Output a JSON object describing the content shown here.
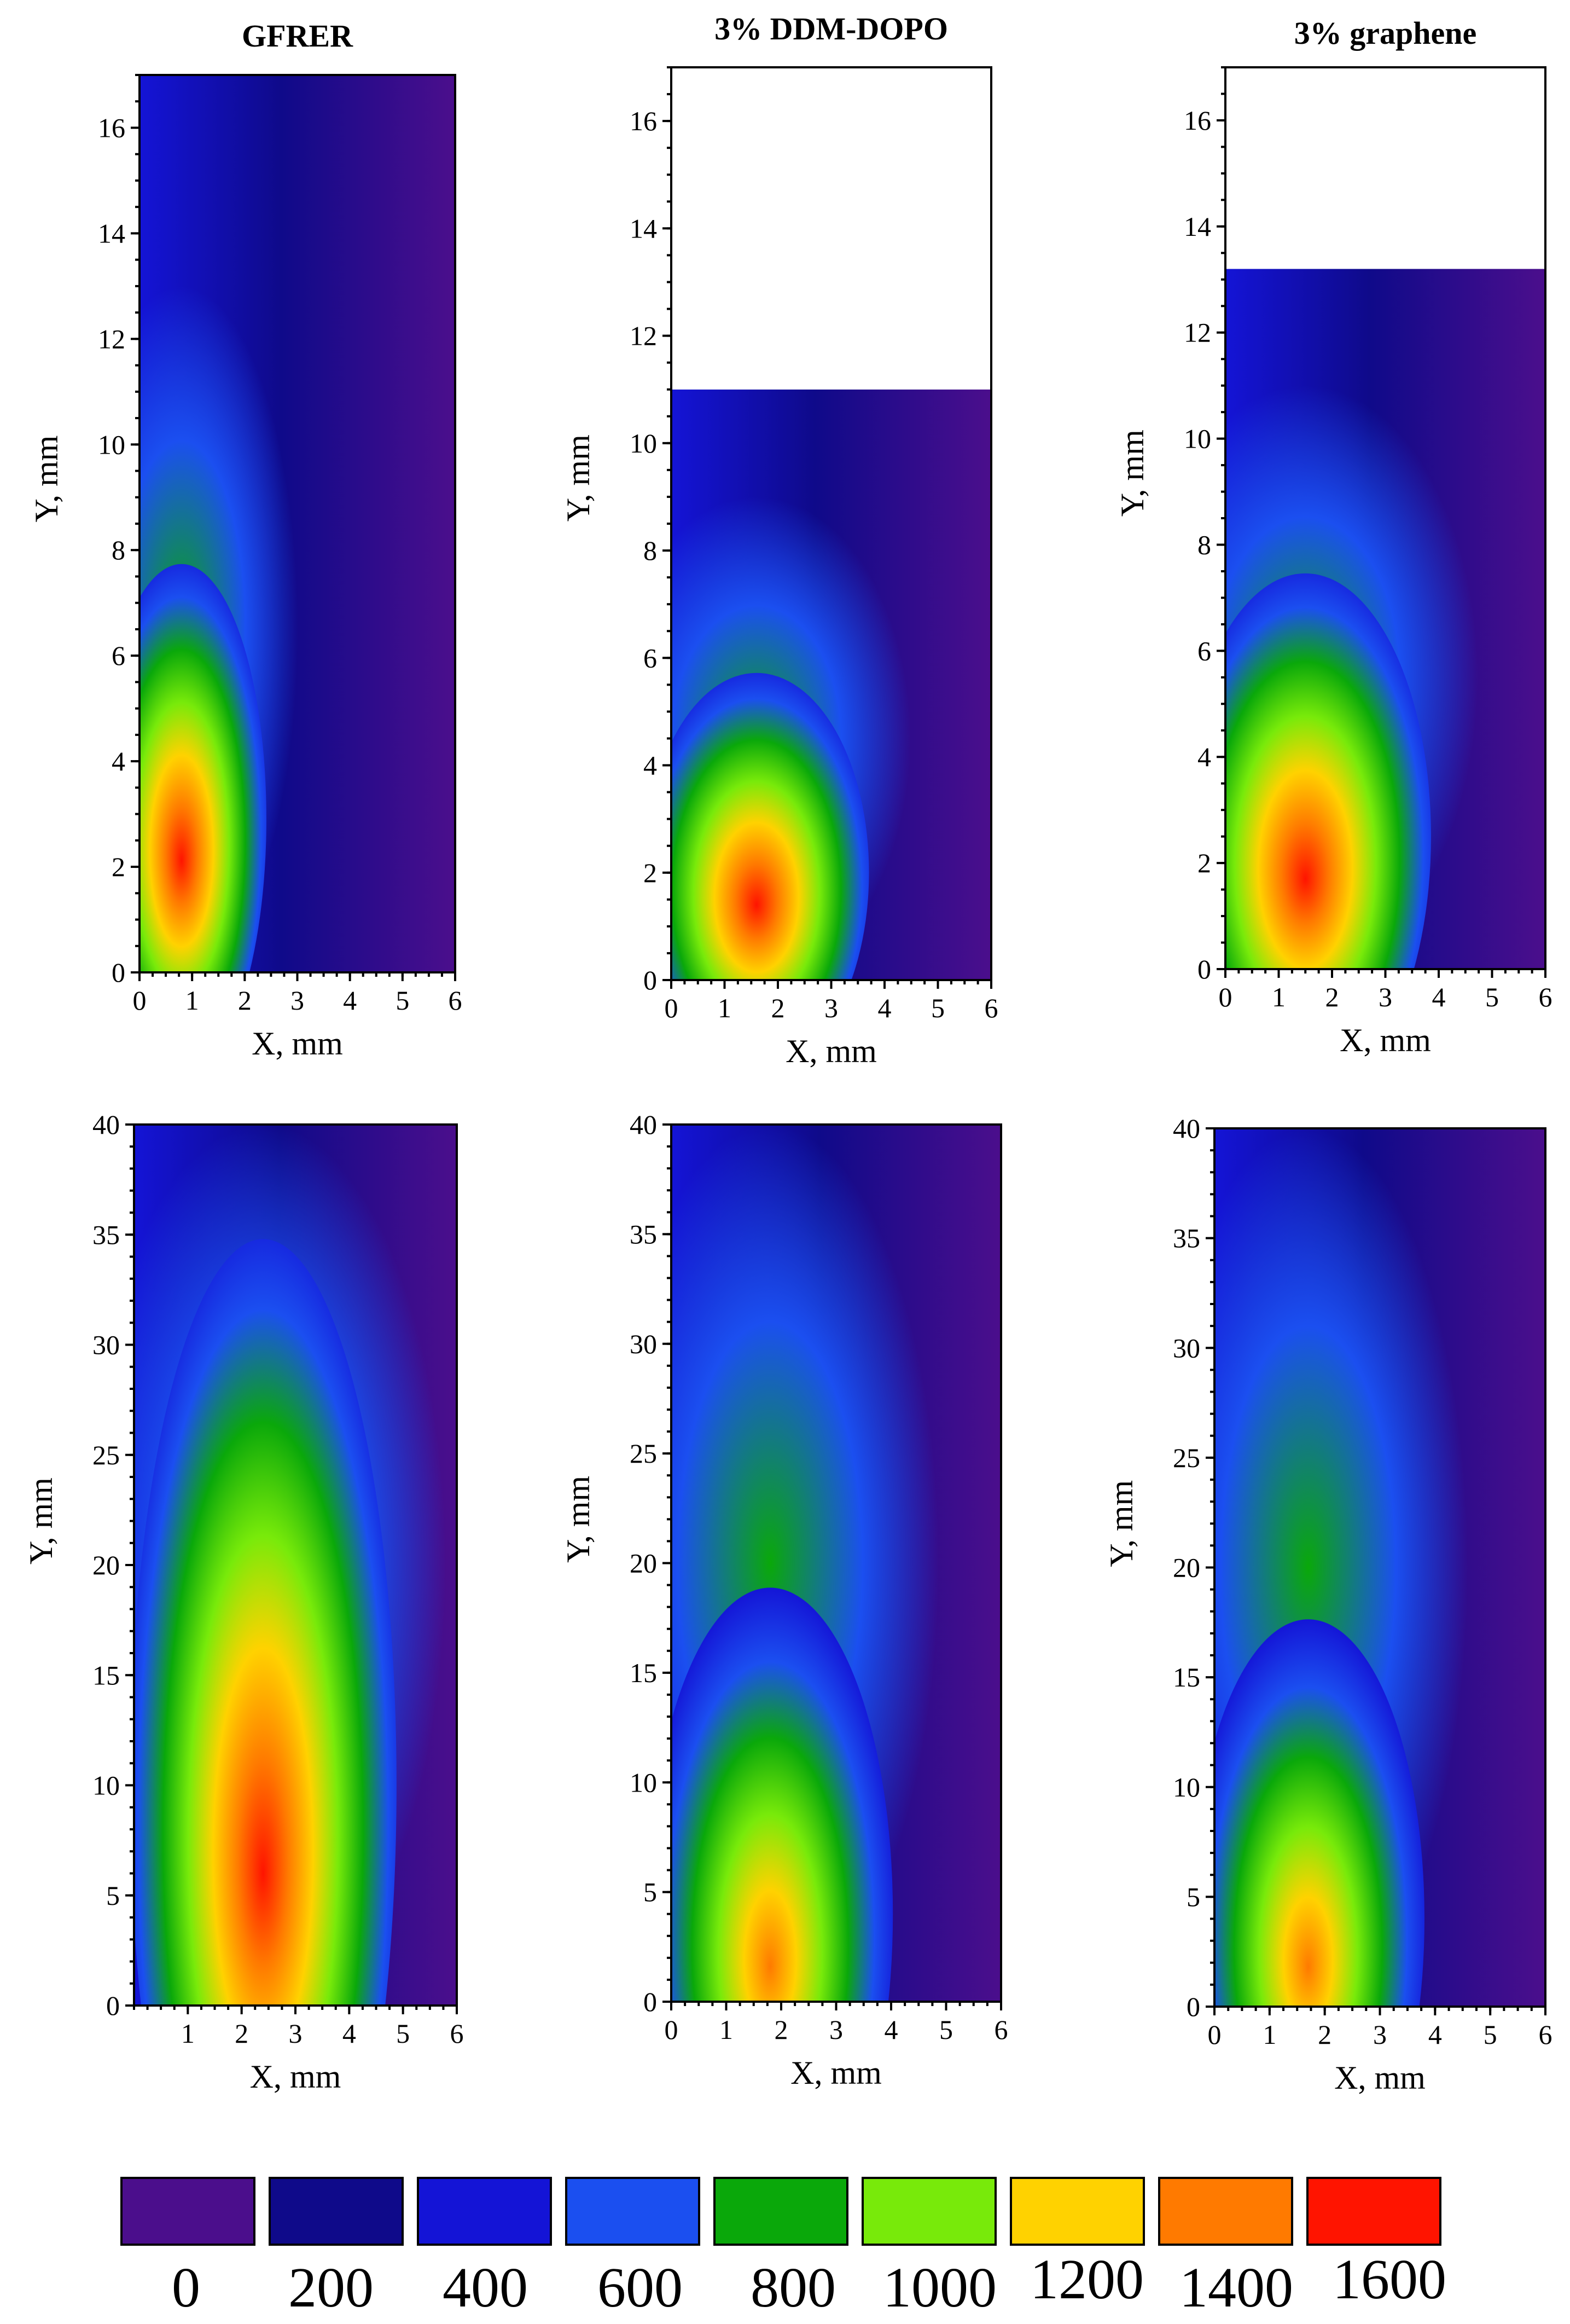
{
  "figure": {
    "colorbar": {
      "levels": [
        0,
        200,
        400,
        600,
        800,
        1000,
        1200,
        1400,
        1600
      ],
      "labels": [
        "0",
        "200",
        "400",
        "600",
        "800",
        "1000",
        "1200",
        "1400",
        "1600"
      ],
      "colors": [
        "#4b0e8c",
        "#0f0a8a",
        "#1414d6",
        "#1b4ff0",
        "#0aa80a",
        "#78ea0a",
        "#ffd200",
        "#ff7a00",
        "#ff1400"
      ]
    }
  },
  "chart_data": [
    {
      "type": "heatmap",
      "panel": "experimental",
      "title": "GFRER",
      "xlabel": "X, mm",
      "ylabel": "Y, mm",
      "xlim": [
        0,
        6
      ],
      "ylim": [
        0,
        17
      ],
      "xticks": [
        0,
        1,
        2,
        3,
        4,
        5,
        6
      ],
      "yticks": [
        0,
        2,
        4,
        6,
        8,
        10,
        12,
        14,
        16
      ],
      "data_extent_y": 17,
      "flame": {
        "peak_x": 0.8,
        "peak_y": 2.9,
        "peak_level": 1600,
        "width": 2.6,
        "height": 7.8,
        "plume_height": 13
      }
    },
    {
      "type": "heatmap",
      "panel": "experimental",
      "title": "3% DDM-DOPO",
      "xlabel": "X, mm",
      "ylabel": "Y, mm",
      "xlim": [
        0,
        6
      ],
      "ylim": [
        0,
        17
      ],
      "xticks": [
        0,
        1,
        2,
        3,
        4,
        5,
        6
      ],
      "yticks": [
        0,
        2,
        4,
        6,
        8,
        10,
        12,
        14,
        16
      ],
      "data_extent_y": 11,
      "flame": {
        "peak_x": 1.6,
        "peak_y": 2.0,
        "peak_level": 1600,
        "width": 3.4,
        "height": 6.0,
        "plume_height": 9
      }
    },
    {
      "type": "heatmap",
      "panel": "experimental",
      "title": "3% graphene",
      "xlabel": "X, mm",
      "ylabel": "Y, mm",
      "xlim": [
        0,
        6
      ],
      "ylim": [
        0,
        17
      ],
      "xticks": [
        0,
        1,
        2,
        3,
        4,
        5,
        6
      ],
      "yticks": [
        0,
        2,
        4,
        6,
        8,
        10,
        12,
        14,
        16
      ],
      "data_extent_y": 13.2,
      "flame": {
        "peak_x": 1.5,
        "peak_y": 2.5,
        "peak_level": 1600,
        "width": 3.8,
        "height": 8.0,
        "plume_height": 11
      }
    },
    {
      "type": "heatmap",
      "panel": "simulated",
      "title": "",
      "xlabel": "X, mm",
      "ylabel": "Y, mm",
      "xlim": [
        0,
        6
      ],
      "ylim": [
        0,
        40
      ],
      "xticks": [
        1,
        2,
        3,
        4,
        5,
        6
      ],
      "yticks": [
        0,
        5,
        10,
        15,
        20,
        25,
        30,
        35,
        40
      ],
      "data_extent_y": 40,
      "flame": {
        "peak_x": 2.4,
        "peak_y": 10,
        "peak_level": 1500,
        "width": 4.0,
        "height": 40,
        "plume_height": 40
      }
    },
    {
      "type": "heatmap",
      "panel": "simulated",
      "title": "",
      "xlabel": "X, mm",
      "ylabel": "Y, mm",
      "xlim": [
        0,
        6
      ],
      "ylim": [
        0,
        40
      ],
      "xticks": [
        0,
        1,
        2,
        3,
        4,
        5,
        6
      ],
      "yticks": [
        0,
        5,
        10,
        15,
        20,
        25,
        30,
        35,
        40
      ],
      "data_extent_y": 40,
      "flame": {
        "peak_x": 1.8,
        "peak_y": 4,
        "peak_level": 1450,
        "width": 3.6,
        "height": 24,
        "plume_height": 40
      }
    },
    {
      "type": "heatmap",
      "panel": "simulated",
      "title": "",
      "xlabel": "X, mm",
      "ylabel": "Y, mm",
      "xlim": [
        0,
        6
      ],
      "ylim": [
        0,
        40
      ],
      "xticks": [
        0,
        1,
        2,
        3,
        4,
        5,
        6
      ],
      "yticks": [
        0,
        5,
        10,
        15,
        20,
        25,
        30,
        35,
        40
      ],
      "data_extent_y": 40,
      "flame": {
        "peak_x": 1.7,
        "peak_y": 4,
        "peak_level": 1450,
        "width": 3.4,
        "height": 22,
        "plume_height": 40
      }
    }
  ]
}
